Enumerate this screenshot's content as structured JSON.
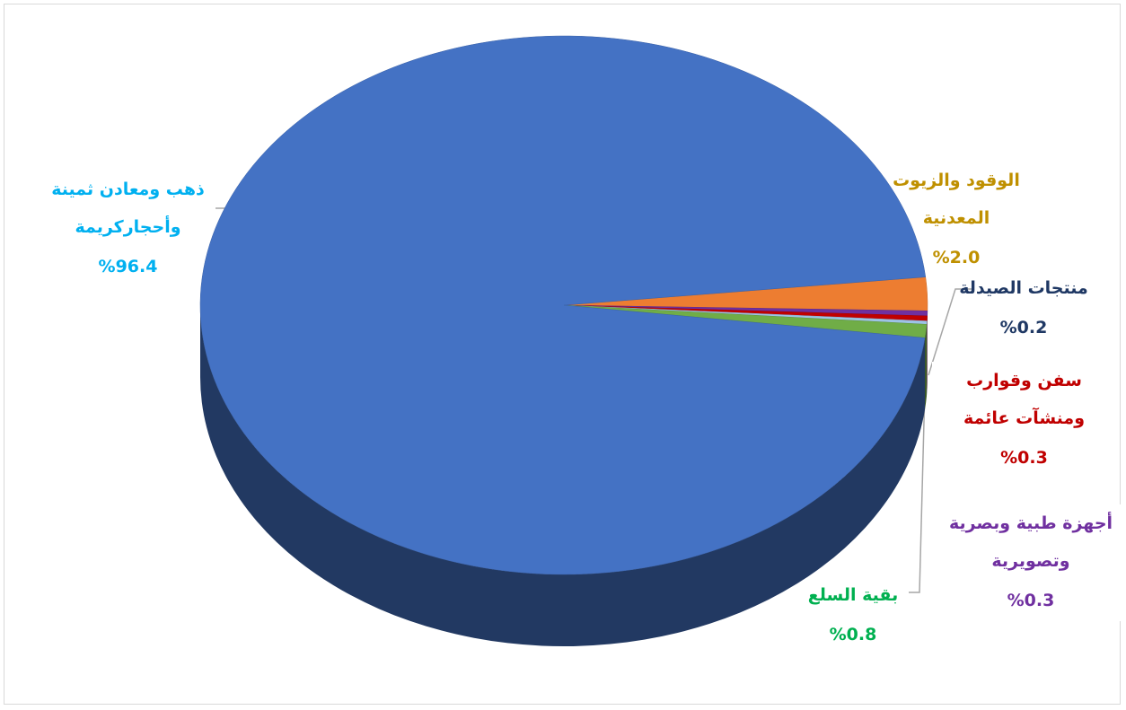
{
  "chart_data": {
    "type": "pie",
    "categories": [
      "الوقود والزيوت المعدنية",
      "أجهزة طبية وبصرية وتصويرية",
      "سفن وقوارب ومنشآت عائمة",
      "منتجات الصيدلة",
      "بقية السلع",
      "ذهب ومعادن ثمينة وأحجاركريمة"
    ],
    "values": [
      2.0,
      0.3,
      0.3,
      0.2,
      0.8,
      96.4
    ],
    "value_labels": [
      "%2.0",
      "%0.3",
      "%0.3",
      "%0.2",
      "%0.8",
      "%96.4"
    ],
    "colors": [
      "#ed7d31",
      "#7030a0",
      "#c00000",
      "#9dc3e6",
      "#70ad47",
      "#4472c4"
    ],
    "label_colors": [
      "#bf9000",
      "#7030a0",
      "#c00000",
      "#1f3864",
      "#00b050",
      "#00b0f0"
    ]
  }
}
